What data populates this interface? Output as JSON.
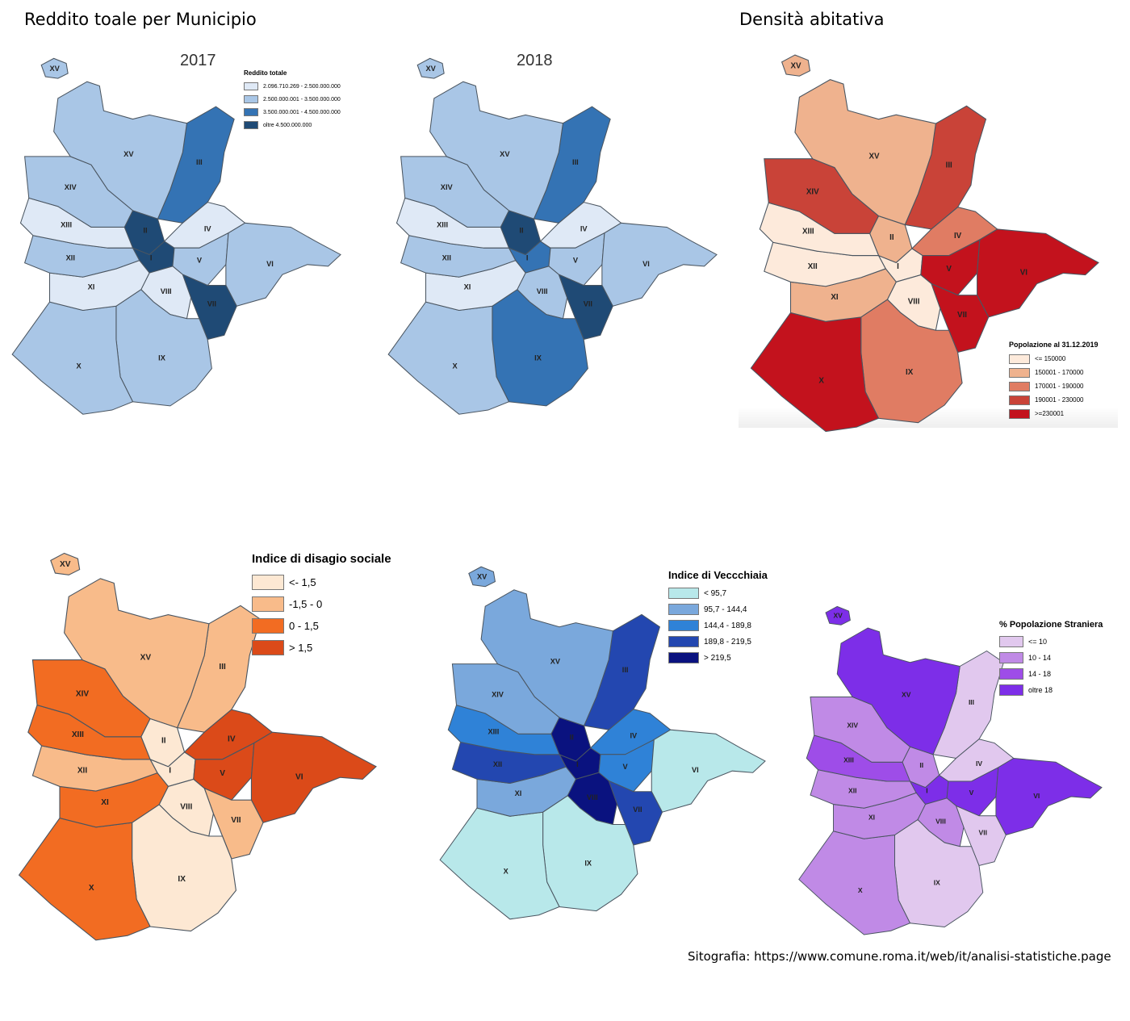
{
  "headings": {
    "income": "Reddito toale per Municipio",
    "density": "Densità abitativa"
  },
  "municipi": [
    "I",
    "II",
    "III",
    "IV",
    "V",
    "VI",
    "VII",
    "VIII",
    "IX",
    "X",
    "XI",
    "XII",
    "XIII",
    "XIV",
    "XV"
  ],
  "maps": [
    {
      "id": "income-2017",
      "year": "2017",
      "legend_title": "Reddito totale",
      "classes": [
        "2.096.710.269 - 2.500.000.000",
        "2.500.000.001 - 3.500.000.000",
        "3.500.000.001 - 4.500.000.000",
        "oltre 4.500.000.000"
      ],
      "class_colors": [
        "#dfe9f6",
        "#a9c6e6",
        "#3473b4",
        "#1f4a75"
      ],
      "region_class": {
        "I": 3,
        "II": 3,
        "III": 2,
        "IV": 0,
        "V": 1,
        "VI": 1,
        "VII": 3,
        "VIII": 0,
        "IX": 1,
        "X": 1,
        "XI": 0,
        "XII": 1,
        "XIII": 0,
        "XIV": 1,
        "XV": 1
      }
    },
    {
      "id": "income-2018",
      "year": "2018",
      "legend_title": "",
      "classes": [
        "2.096.710.269 - 2.500.000.000",
        "2.500.000.001 - 3.500.000.000",
        "3.500.000.001 - 4.500.000.000",
        "oltre 4.500.000.000"
      ],
      "class_colors": [
        "#dfe9f6",
        "#a9c6e6",
        "#3473b4",
        "#1f4a75"
      ],
      "region_class": {
        "I": 2,
        "II": 3,
        "III": 2,
        "IV": 0,
        "V": 1,
        "VI": 1,
        "VII": 3,
        "VIII": 1,
        "IX": 2,
        "X": 1,
        "XI": 0,
        "XII": 1,
        "XIII": 0,
        "XIV": 1,
        "XV": 1
      }
    },
    {
      "id": "density",
      "year": "",
      "legend_title": "Popolazione al 31.12.2019",
      "classes": [
        "<= 150000",
        "150001 - 170000",
        "170001 - 190000",
        "190001 - 230000",
        ">=230001"
      ],
      "class_colors": [
        "#fdeadb",
        "#efb28e",
        "#e07c63",
        "#c94338",
        "#c3121d"
      ],
      "region_class": {
        "I": 0,
        "II": 1,
        "III": 3,
        "IV": 2,
        "V": 4,
        "VI": 4,
        "VII": 4,
        "VIII": 0,
        "IX": 2,
        "X": 4,
        "XI": 1,
        "XII": 0,
        "XIII": 0,
        "XIV": 3,
        "XV": 1
      }
    },
    {
      "id": "disagio",
      "year": "",
      "legend_title": "Indice di disagio sociale",
      "classes": [
        "<- 1,5",
        "-1,5 - 0",
        "0 - 1,5",
        "> 1,5"
      ],
      "class_colors": [
        "#fde8d3",
        "#f8bb8a",
        "#f26c22",
        "#db4a19"
      ],
      "region_class": {
        "I": 0,
        "II": 0,
        "III": 1,
        "IV": 3,
        "V": 3,
        "VI": 3,
        "VII": 1,
        "VIII": 0,
        "IX": 0,
        "X": 2,
        "XI": 2,
        "XII": 1,
        "XIII": 2,
        "XIV": 2,
        "XV": 1
      }
    },
    {
      "id": "vecchiaia",
      "year": "",
      "legend_title": "Indice di Veccchiaia",
      "classes": [
        "< 95,7",
        "95,7 - 144,4",
        "144,4 - 189,8",
        "189,8 - 219,5",
        "> 219,5"
      ],
      "class_colors": [
        "#b8e8ea",
        "#7aa8dc",
        "#2f82d7",
        "#2347b0",
        "#0a127f"
      ],
      "region_class": {
        "I": 4,
        "II": 4,
        "III": 3,
        "IV": 2,
        "V": 2,
        "VI": 0,
        "VII": 3,
        "VIII": 4,
        "IX": 0,
        "X": 0,
        "XI": 1,
        "XII": 3,
        "XIII": 2,
        "XIV": 1,
        "XV": 1
      }
    },
    {
      "id": "stranieri",
      "year": "",
      "legend_title": "% Popolazione Straniera",
      "classes": [
        "<= 10",
        "10 - 14",
        "14 - 18",
        "oltre 18"
      ],
      "class_colors": [
        "#e1c8ee",
        "#c08ae6",
        "#9e4de8",
        "#7d2ee8"
      ],
      "region_class": {
        "I": 3,
        "II": 1,
        "III": 0,
        "IV": 0,
        "V": 3,
        "VI": 3,
        "VII": 0,
        "VIII": 1,
        "IX": 0,
        "X": 1,
        "XI": 1,
        "XII": 1,
        "XIII": 2,
        "XIV": 1,
        "XV": 3
      }
    }
  ],
  "source": "Sitografia: https://www.comune.roma.it/web/it/analisi-statistiche.page"
}
